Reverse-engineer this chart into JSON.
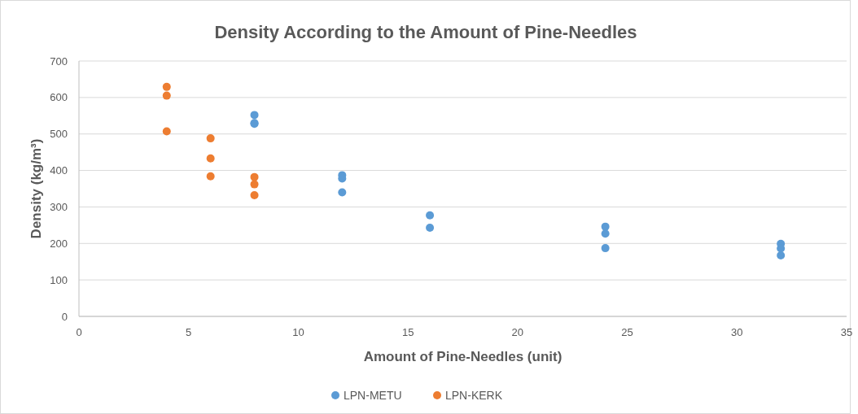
{
  "chart_data": {
    "type": "scatter",
    "title": "Density According to the Amount of Pine-Needles",
    "xlabel": "Amount of Pine-Needles (unit)",
    "ylabel": "Density (kg/m³)",
    "xlim": [
      0,
      35
    ],
    "xticks": [
      0,
      5,
      10,
      15,
      20,
      25,
      30,
      35
    ],
    "ylim": [
      0,
      700
    ],
    "yticks": [
      0,
      100,
      200,
      300,
      400,
      500,
      600,
      700
    ],
    "grid": "y",
    "legend": "bottom",
    "marker": "circle",
    "series": [
      {
        "name": "LPN-METU",
        "color": "#5b9bd5",
        "x": [
          8,
          8,
          8,
          12,
          12,
          12,
          16,
          16,
          24,
          24,
          24,
          32,
          32,
          32
        ],
        "values": [
          552,
          530,
          528,
          387,
          378,
          340,
          277,
          243,
          246,
          227,
          187,
          199,
          186,
          167
        ]
      },
      {
        "name": "LPN-KERK",
        "color": "#ed7d31",
        "x": [
          4,
          4,
          4,
          6,
          6,
          6,
          8,
          8,
          8
        ],
        "values": [
          629,
          605,
          507,
          488,
          433,
          384,
          382,
          362,
          332
        ]
      }
    ]
  }
}
